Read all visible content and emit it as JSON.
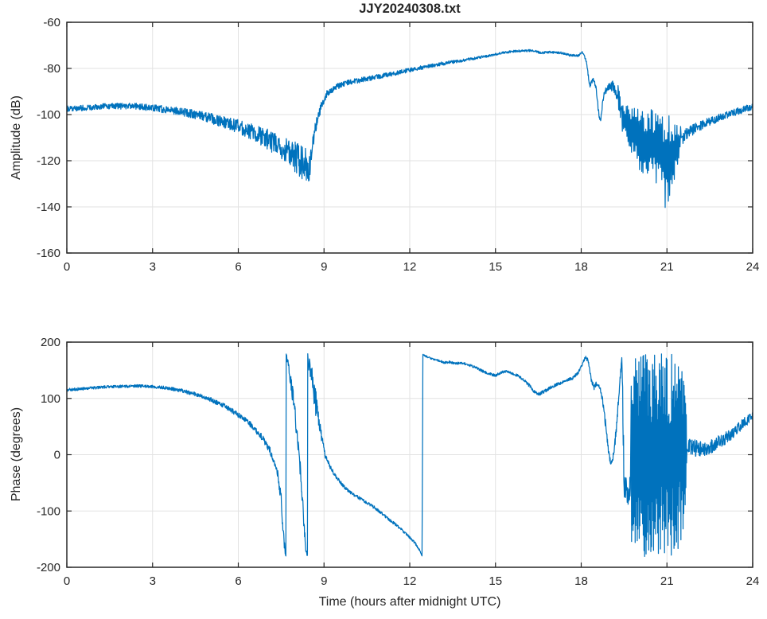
{
  "figure": {
    "background": "#ffffff",
    "colors": {
      "line": "#0072BD",
      "grid": "#e2e2e2",
      "axis": "#262626",
      "text": "#262626"
    }
  },
  "chart_data": [
    {
      "type": "line",
      "title": "JJY20240308.txt",
      "xlabel": "",
      "ylabel": "Amplitude (dB)",
      "xlim": [
        0,
        24
      ],
      "ylim": [
        -160,
        -60
      ],
      "xticks": [
        0,
        3,
        6,
        9,
        12,
        15,
        18,
        21,
        24
      ],
      "yticks": [
        -160,
        -140,
        -120,
        -100,
        -80,
        -60
      ],
      "grid": true,
      "legend": null,
      "series_name": "JJY 40 kHz received amplitude (dB) vs hours after midnight UTC",
      "segments": [
        {
          "mode": "line",
          "dt": 0.01,
          "points": [
            [
              0,
              -97.5,
              1.2
            ],
            [
              0.5,
              -97.2,
              1.2
            ],
            [
              1,
              -96.8,
              1.3
            ],
            [
              1.5,
              -96.4,
              1.3
            ],
            [
              2,
              -96.3,
              1.4
            ],
            [
              2.5,
              -96.5,
              1.4
            ],
            [
              3,
              -97.1,
              1.5
            ],
            [
              3.5,
              -97.9,
              1.6
            ],
            [
              4,
              -98.8,
              1.8
            ],
            [
              4.5,
              -100,
              2
            ],
            [
              5,
              -101.5,
              2.2
            ],
            [
              5.5,
              -103.2,
              2.6
            ],
            [
              6,
              -105.2,
              3
            ],
            [
              6.5,
              -107.6,
              3.6
            ],
            [
              7,
              -110.6,
              4.5
            ],
            [
              7.5,
              -114.2,
              5.5
            ],
            [
              7.8,
              -116.6,
              6.2
            ],
            [
              8.1,
              -119.2,
              7
            ],
            [
              8.35,
              -122,
              8
            ],
            [
              8.45,
              -128.5,
              7
            ],
            [
              8.52,
              -121,
              6
            ],
            [
              8.62,
              -111,
              3.5
            ],
            [
              8.75,
              -103,
              2.5
            ],
            [
              8.9,
              -96.5,
              2
            ],
            [
              9.1,
              -91,
              1.6
            ],
            [
              9.4,
              -88,
              1.3
            ],
            [
              9.8,
              -86.3,
              1.2
            ],
            [
              10.3,
              -85,
              1.1
            ],
            [
              11,
              -83.3,
              1
            ],
            [
              11.7,
              -81.5,
              1
            ],
            [
              12.4,
              -79.7,
              0.9
            ],
            [
              13,
              -78.2,
              0.8
            ],
            [
              13.6,
              -77,
              0.7
            ],
            [
              14.2,
              -75.8,
              0.6
            ],
            [
              14.8,
              -74.4,
              0.55
            ],
            [
              15.3,
              -73.1,
              0.5
            ],
            [
              15.8,
              -72.4,
              0.45
            ],
            [
              16.3,
              -72.2,
              0.45
            ],
            [
              16.6,
              -73.3,
              0.45
            ],
            [
              16.9,
              -72.9,
              0.45
            ],
            [
              17.3,
              -73.3,
              0.5
            ],
            [
              17.6,
              -74.3,
              0.5
            ],
            [
              17.9,
              -74.4,
              0.5
            ],
            [
              18.05,
              -72.9,
              0.45
            ],
            [
              18.18,
              -77,
              0.6
            ],
            [
              18.3,
              -87.8,
              0.8
            ],
            [
              18.42,
              -84.5,
              0.8
            ],
            [
              18.52,
              -88.5,
              1
            ],
            [
              18.62,
              -100.5,
              1.5
            ],
            [
              18.67,
              -102.5,
              1.5
            ],
            [
              18.78,
              -92.5,
              1.5
            ],
            [
              18.9,
              -88.5,
              1.6
            ],
            [
              19.1,
              -87.6,
              2.2
            ],
            [
              19.28,
              -91,
              4
            ],
            [
              19.38,
              -98,
              7
            ]
          ]
        },
        {
          "mode": "spiky",
          "dt": 0.02,
          "points": [
            [
              19.42,
              -108,
              -94
            ],
            [
              19.6,
              -114,
              -95
            ],
            [
              19.8,
              -118,
              -96
            ],
            [
              20,
              -124,
              -97
            ],
            [
              20.2,
              -127,
              -97
            ],
            [
              20.45,
              -129,
              -96
            ],
            [
              20.7,
              -131,
              -97
            ],
            [
              20.9,
              -139,
              -98
            ],
            [
              21.05,
              -146,
              -100
            ],
            [
              21.2,
              -133,
              -102
            ],
            [
              21.35,
              -123,
              -104
            ],
            [
              21.5,
              -115,
              -105
            ]
          ]
        },
        {
          "mode": "line",
          "dt": 0.01,
          "points": [
            [
              21.55,
              -110,
              3
            ],
            [
              21.75,
              -107.5,
              2.5
            ],
            [
              22,
              -106,
              2.2
            ],
            [
              22.3,
              -104,
              1.9
            ],
            [
              22.7,
              -102,
              1.7
            ],
            [
              23.1,
              -100,
              1.6
            ],
            [
              23.5,
              -98.5,
              1.5
            ],
            [
              23.8,
              -97.3,
              1.4
            ],
            [
              24,
              -96.8,
              1.4
            ]
          ]
        }
      ]
    },
    {
      "type": "line",
      "title": "",
      "xlabel": "Time (hours after midnight UTC)",
      "ylabel": "Phase (degrees)",
      "xlim": [
        0,
        24
      ],
      "ylim": [
        -200,
        200
      ],
      "xticks": [
        0,
        3,
        6,
        9,
        12,
        15,
        18,
        21,
        24
      ],
      "yticks": [
        -200,
        -100,
        0,
        100,
        200
      ],
      "grid": true,
      "legend": null,
      "series_name": "JJY 40 kHz received phase (degrees, wrapped at ±180) vs hours after midnight UTC",
      "segments": [
        {
          "mode": "line",
          "dt": 0.01,
          "points": [
            [
              0,
              115,
              2.5
            ],
            [
              0.5,
              117,
              2.5
            ],
            [
              1,
              119,
              2.5
            ],
            [
              1.5,
              120.5,
              2.5
            ],
            [
              2,
              121.5,
              2.5
            ],
            [
              2.5,
              122,
              2.5
            ],
            [
              3,
              121,
              2.5
            ],
            [
              3.5,
              118.5,
              3
            ],
            [
              4,
              114,
              3.2
            ],
            [
              4.5,
              107.5,
              3.5
            ],
            [
              5,
              98.5,
              3.8
            ],
            [
              5.5,
              87,
              4
            ],
            [
              6,
              71,
              4.5
            ],
            [
              6.4,
              55,
              5
            ],
            [
              6.8,
              33,
              5.5
            ],
            [
              7.1,
              9,
              6
            ],
            [
              7.35,
              -26,
              8
            ],
            [
              7.5,
              -78,
              12
            ],
            [
              7.58,
              -142,
              14
            ],
            [
              7.64,
              -174,
              5
            ],
            [
              7.665,
              -179,
              2
            ],
            [
              7.675,
              178,
              2
            ],
            [
              7.75,
              158,
              10
            ],
            [
              7.9,
              108,
              15
            ],
            [
              8.05,
              42,
              16
            ],
            [
              8.2,
              -45,
              15
            ],
            [
              8.3,
              -122,
              12
            ],
            [
              8.36,
              -170,
              6
            ],
            [
              8.42,
              -179,
              2
            ],
            [
              8.43,
              176,
              4
            ],
            [
              8.5,
              148,
              25
            ],
            [
              8.6,
              122,
              30
            ],
            [
              8.7,
              97,
              25
            ],
            [
              8.8,
              62,
              15
            ],
            [
              8.95,
              22,
              8
            ],
            [
              9.05,
              -4,
              5
            ],
            [
              9.2,
              -20,
              4
            ],
            [
              9.4,
              -38,
              3.2
            ],
            [
              9.7,
              -57,
              3
            ],
            [
              10,
              -70,
              2.8
            ],
            [
              10.4,
              -82,
              2.6
            ],
            [
              10.8,
              -95,
              2.6
            ],
            [
              11.2,
              -112,
              2.6
            ],
            [
              11.6,
              -128,
              2.6
            ],
            [
              12,
              -147,
              2.4
            ],
            [
              12.2,
              -158,
              2.2
            ],
            [
              12.35,
              -170,
              1.8
            ],
            [
              12.43,
              -179,
              1
            ],
            [
              12.46,
              178,
              1
            ],
            [
              12.6,
              174,
              1.5
            ],
            [
              12.8,
              170,
              1.6
            ],
            [
              13,
              167.5,
              1.6
            ],
            [
              13.2,
              164,
              2
            ],
            [
              13.4,
              164.5,
              2
            ],
            [
              13.6,
              162,
              2
            ],
            [
              13.8,
              163,
              2
            ],
            [
              14.05,
              160,
              2
            ],
            [
              14.3,
              155,
              2.2
            ],
            [
              14.55,
              148.5,
              2.2
            ],
            [
              14.8,
              143.5,
              2.4
            ],
            [
              15,
              141,
              2.4
            ],
            [
              15.2,
              146,
              2.2
            ],
            [
              15.4,
              148.5,
              2.2
            ],
            [
              15.6,
              144,
              2.2
            ],
            [
              15.8,
              140,
              2.2
            ],
            [
              16,
              132,
              2.5
            ],
            [
              16.2,
              122,
              3
            ],
            [
              16.35,
              112,
              3
            ],
            [
              16.5,
              107.5,
              3
            ],
            [
              16.7,
              112,
              3
            ],
            [
              16.9,
              118,
              3
            ],
            [
              17.1,
              124,
              2.6
            ],
            [
              17.4,
              130,
              2.6
            ],
            [
              17.7,
              136,
              2.6
            ],
            [
              17.9,
              146,
              2.8
            ],
            [
              18.05,
              163,
              3
            ],
            [
              18.15,
              174,
              3
            ],
            [
              18.25,
              166,
              3.5
            ],
            [
              18.35,
              133,
              4
            ],
            [
              18.45,
              119,
              4
            ],
            [
              18.55,
              128,
              4
            ],
            [
              18.65,
              121,
              4
            ],
            [
              18.75,
              95,
              6
            ],
            [
              18.85,
              55,
              8
            ],
            [
              18.95,
              6,
              8
            ],
            [
              19.05,
              -15,
              6
            ],
            [
              19.15,
              4,
              8
            ],
            [
              19.25,
              60,
              9
            ],
            [
              19.35,
              130,
              10
            ],
            [
              19.42,
              168,
              6
            ],
            [
              19.45,
              100,
              30
            ],
            [
              19.5,
              -50,
              25
            ],
            [
              19.6,
              -68,
              22
            ],
            [
              19.72,
              -60,
              25
            ]
          ]
        },
        {
          "mode": "spiky",
          "dt": 0.012,
          "points": [
            [
              19.75,
              -180,
              150
            ],
            [
              19.9,
              -180,
              178
            ],
            [
              20.1,
              -181,
              180
            ],
            [
              20.4,
              -182,
              180
            ],
            [
              20.7,
              -180,
              182
            ],
            [
              21,
              -182,
              180
            ],
            [
              21.2,
              -180,
              178
            ],
            [
              21.35,
              -176,
              180
            ],
            [
              21.5,
              -165,
              175
            ],
            [
              21.6,
              -120,
              130
            ],
            [
              21.7,
              -40,
              60
            ]
          ]
        },
        {
          "mode": "line",
          "dt": 0.01,
          "points": [
            [
              21.75,
              15,
              18
            ],
            [
              22,
              12,
              15
            ],
            [
              22.3,
              8,
              13
            ],
            [
              22.6,
              16,
              12
            ],
            [
              23,
              28,
              11
            ],
            [
              23.4,
              42,
              10
            ],
            [
              23.7,
              57,
              9
            ],
            [
              24,
              68,
              8
            ]
          ]
        }
      ]
    }
  ]
}
